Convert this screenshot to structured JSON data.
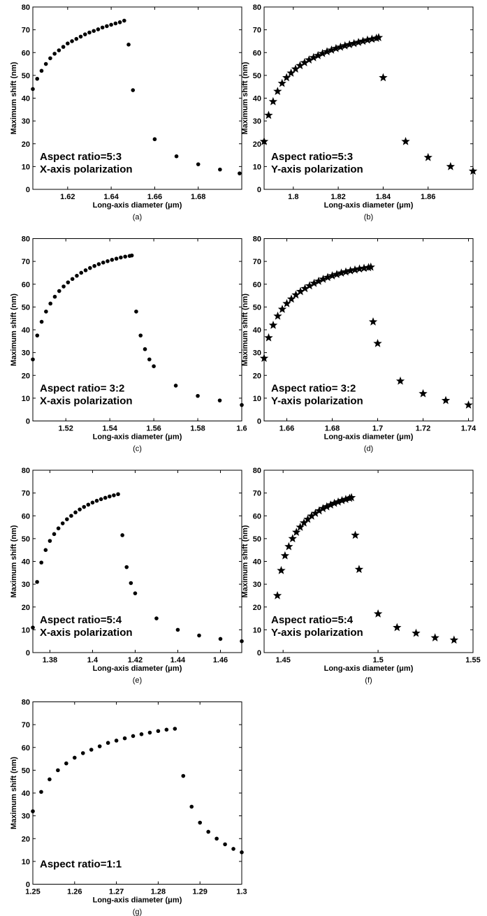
{
  "chart_data": [
    {
      "type": "scatter",
      "marker": "dot",
      "color": "#000000",
      "panel_label": "(a)",
      "annotations": [
        "Aspect ratio=5:3",
        "X-axis polarization"
      ],
      "xlabel": "Long-axis diameter (μm)",
      "ylabel": "Maximum shift (nm)",
      "x": [
        1.604,
        1.606,
        1.608,
        1.61,
        1.612,
        1.614,
        1.616,
        1.618,
        1.62,
        1.622,
        1.624,
        1.626,
        1.628,
        1.63,
        1.632,
        1.634,
        1.636,
        1.638,
        1.64,
        1.642,
        1.644,
        1.646,
        1.648,
        1.65,
        1.66,
        1.67,
        1.68,
        1.69,
        1.699
      ],
      "values": [
        44,
        48.5,
        52,
        55,
        57.5,
        59.5,
        61,
        62.5,
        64,
        65,
        66,
        67,
        68,
        68.8,
        69.5,
        70.2,
        71,
        71.6,
        72.2,
        72.8,
        73.3,
        74,
        63.5,
        43.5,
        22,
        14.5,
        11,
        8.7,
        7
      ],
      "xlim": [
        1.604,
        1.7
      ],
      "xticks": [
        1.62,
        1.64,
        1.66,
        1.68
      ],
      "ylim": [
        0,
        80
      ],
      "yticks": [
        0,
        10,
        20,
        30,
        40,
        50,
        60,
        70,
        80
      ]
    },
    {
      "type": "scatter",
      "marker": "star",
      "color": "#000000",
      "panel_label": "(b)",
      "annotations": [
        "Aspect ratio=5:3",
        "Y-axis polarization"
      ],
      "xlabel": "Long-axis diameter (μm)",
      "ylabel": "Maximum shift (nm)",
      "x": [
        1.787,
        1.789,
        1.791,
        1.793,
        1.795,
        1.797,
        1.799,
        1.801,
        1.803,
        1.805,
        1.807,
        1.809,
        1.811,
        1.813,
        1.815,
        1.817,
        1.819,
        1.821,
        1.823,
        1.825,
        1.827,
        1.829,
        1.831,
        1.833,
        1.835,
        1.837,
        1.838,
        1.84,
        1.85,
        1.86,
        1.87,
        1.88
      ],
      "values": [
        21,
        32.5,
        38.5,
        43,
        46.5,
        49,
        51,
        52.8,
        54.3,
        55.6,
        56.8,
        57.8,
        58.7,
        59.6,
        60.4,
        61.1,
        61.8,
        62.4,
        63,
        63.5,
        64,
        64.5,
        65,
        65.5,
        65.9,
        66.3,
        66.6,
        49,
        21,
        14,
        10,
        8
      ],
      "xlim": [
        1.787,
        1.88
      ],
      "xticks": [
        1.8,
        1.82,
        1.84,
        1.86
      ],
      "ylim": [
        0,
        80
      ],
      "yticks": [
        0,
        10,
        20,
        30,
        40,
        50,
        60,
        70,
        80
      ]
    },
    {
      "type": "scatter",
      "marker": "dot",
      "color": "#000000",
      "panel_label": "(c)",
      "annotations": [
        "Aspect ratio= 3:2",
        "X-axis polarization"
      ],
      "xlabel": "Long-axis diameter (μm)",
      "ylabel": "Maximum shift (nm)",
      "x": [
        1.505,
        1.507,
        1.509,
        1.511,
        1.513,
        1.515,
        1.517,
        1.519,
        1.521,
        1.523,
        1.525,
        1.527,
        1.529,
        1.531,
        1.533,
        1.535,
        1.537,
        1.539,
        1.541,
        1.543,
        1.545,
        1.547,
        1.549,
        1.55,
        1.552,
        1.554,
        1.556,
        1.558,
        1.56,
        1.57,
        1.58,
        1.59,
        1.6
      ],
      "values": [
        27,
        37.5,
        43.5,
        48,
        51.5,
        54.5,
        57,
        59,
        60.8,
        62.3,
        63.7,
        65,
        66.1,
        67.1,
        68,
        68.8,
        69.5,
        70.1,
        70.7,
        71.2,
        71.7,
        72.1,
        72.4,
        72.6,
        48,
        37.5,
        31.5,
        27,
        24,
        15.5,
        11,
        9,
        7
      ],
      "xlim": [
        1.505,
        1.6
      ],
      "xticks": [
        1.52,
        1.54,
        1.56,
        1.58,
        1.6
      ],
      "ylim": [
        0,
        80
      ],
      "yticks": [
        0,
        10,
        20,
        30,
        40,
        50,
        60,
        70,
        80
      ]
    },
    {
      "type": "scatter",
      "marker": "star",
      "color": "#000000",
      "panel_label": "(d)",
      "annotations": [
        "Aspect ratio= 3:2",
        "Y-axis polarization"
      ],
      "xlabel": "Long-axis diameter (μm)",
      "ylabel": "Maximum shift (nm)",
      "x": [
        1.65,
        1.652,
        1.654,
        1.656,
        1.658,
        1.66,
        1.662,
        1.664,
        1.666,
        1.668,
        1.67,
        1.672,
        1.674,
        1.676,
        1.678,
        1.68,
        1.682,
        1.684,
        1.686,
        1.688,
        1.69,
        1.692,
        1.694,
        1.696,
        1.697,
        1.698,
        1.7,
        1.71,
        1.72,
        1.73,
        1.74
      ],
      "values": [
        27.5,
        36.5,
        42,
        46,
        49,
        51.5,
        53.5,
        55.3,
        56.8,
        58.1,
        59.3,
        60.4,
        61.3,
        62.2,
        63,
        63.7,
        64.3,
        64.9,
        65.4,
        65.9,
        66.3,
        66.7,
        67,
        67.3,
        67.5,
        43.5,
        34,
        17.5,
        12,
        9,
        7
      ],
      "xlim": [
        1.65,
        1.742
      ],
      "xticks": [
        1.66,
        1.68,
        1.7,
        1.72,
        1.74
      ],
      "ylim": [
        0,
        80
      ],
      "yticks": [
        0,
        10,
        20,
        30,
        40,
        50,
        60,
        70,
        80
      ]
    },
    {
      "type": "scatter",
      "marker": "dot",
      "color": "#000000",
      "panel_label": "(e)",
      "annotations": [
        "Aspect ratio=5:4",
        "X-axis polarization"
      ],
      "xlabel": "Long-axis diameter (μm)",
      "ylabel": "Maximum shift (nm)",
      "x": [
        1.372,
        1.374,
        1.376,
        1.378,
        1.38,
        1.382,
        1.384,
        1.386,
        1.388,
        1.39,
        1.392,
        1.394,
        1.396,
        1.398,
        1.4,
        1.402,
        1.404,
        1.406,
        1.408,
        1.41,
        1.412,
        1.414,
        1.416,
        1.418,
        1.42,
        1.43,
        1.44,
        1.45,
        1.46,
        1.47
      ],
      "values": [
        11,
        31,
        39.5,
        45,
        49,
        52,
        54.5,
        56.7,
        58.5,
        60,
        61.5,
        62.8,
        63.9,
        64.9,
        65.8,
        66.6,
        67.3,
        67.9,
        68.5,
        69,
        69.5,
        51.5,
        37.5,
        30.5,
        26,
        15,
        10,
        7.5,
        6,
        5
      ],
      "xlim": [
        1.372,
        1.47
      ],
      "xticks": [
        1.38,
        1.4,
        1.42,
        1.44,
        1.46
      ],
      "ylim": [
        0,
        80
      ],
      "yticks": [
        0,
        10,
        20,
        30,
        40,
        50,
        60,
        70,
        80
      ]
    },
    {
      "type": "scatter",
      "marker": "star",
      "color": "#000000",
      "panel_label": "(f)",
      "annotations": [
        "Aspect ratio=5:4",
        "Y-axis polarization"
      ],
      "xlabel": "Long-axis diameter (μm)",
      "ylabel": "Maximum shift (nm)",
      "x": [
        1.447,
        1.449,
        1.451,
        1.453,
        1.455,
        1.457,
        1.459,
        1.461,
        1.463,
        1.465,
        1.467,
        1.469,
        1.471,
        1.473,
        1.475,
        1.477,
        1.479,
        1.481,
        1.483,
        1.485,
        1.486,
        1.488,
        1.49,
        1.5,
        1.51,
        1.52,
        1.53,
        1.54
      ],
      "values": [
        25,
        36,
        42.5,
        46.5,
        50,
        52.8,
        55,
        56.9,
        58.5,
        59.9,
        61.1,
        62.2,
        63.2,
        64,
        64.8,
        65.5,
        66.1,
        66.7,
        67.2,
        67.7,
        68,
        51.5,
        36.5,
        17,
        11,
        8.5,
        6.5,
        5.5
      ],
      "xlim": [
        1.44,
        1.55
      ],
      "xticks": [
        1.45,
        1.5,
        1.55
      ],
      "ylim": [
        0,
        80
      ],
      "yticks": [
        0,
        10,
        20,
        30,
        40,
        50,
        60,
        70,
        80
      ]
    },
    {
      "type": "scatter",
      "marker": "dot",
      "color": "#000000",
      "panel_label": "(g)",
      "annotations": [
        "Aspect ratio=1:1"
      ],
      "xlabel": "Long-axis diameter (μm)",
      "ylabel": "Maximum shift (nm)",
      "x": [
        1.25,
        1.252,
        1.254,
        1.256,
        1.258,
        1.26,
        1.262,
        1.264,
        1.266,
        1.268,
        1.27,
        1.272,
        1.274,
        1.276,
        1.278,
        1.28,
        1.282,
        1.284,
        1.286,
        1.288,
        1.29,
        1.292,
        1.294,
        1.296,
        1.298,
        1.3
      ],
      "values": [
        32,
        40.5,
        46,
        50,
        53,
        55.5,
        57.5,
        59,
        60.5,
        62,
        63,
        64,
        65,
        65.8,
        66.5,
        67.2,
        67.8,
        68.2,
        47.5,
        34,
        27,
        23,
        20,
        17.5,
        15.5,
        14
      ],
      "xlim": [
        1.25,
        1.3
      ],
      "xticks": [
        1.25,
        1.26,
        1.27,
        1.28,
        1.29,
        1.3
      ],
      "ylim": [
        0,
        80
      ],
      "yticks": [
        0,
        10,
        20,
        30,
        40,
        50,
        60,
        70,
        80
      ]
    }
  ]
}
